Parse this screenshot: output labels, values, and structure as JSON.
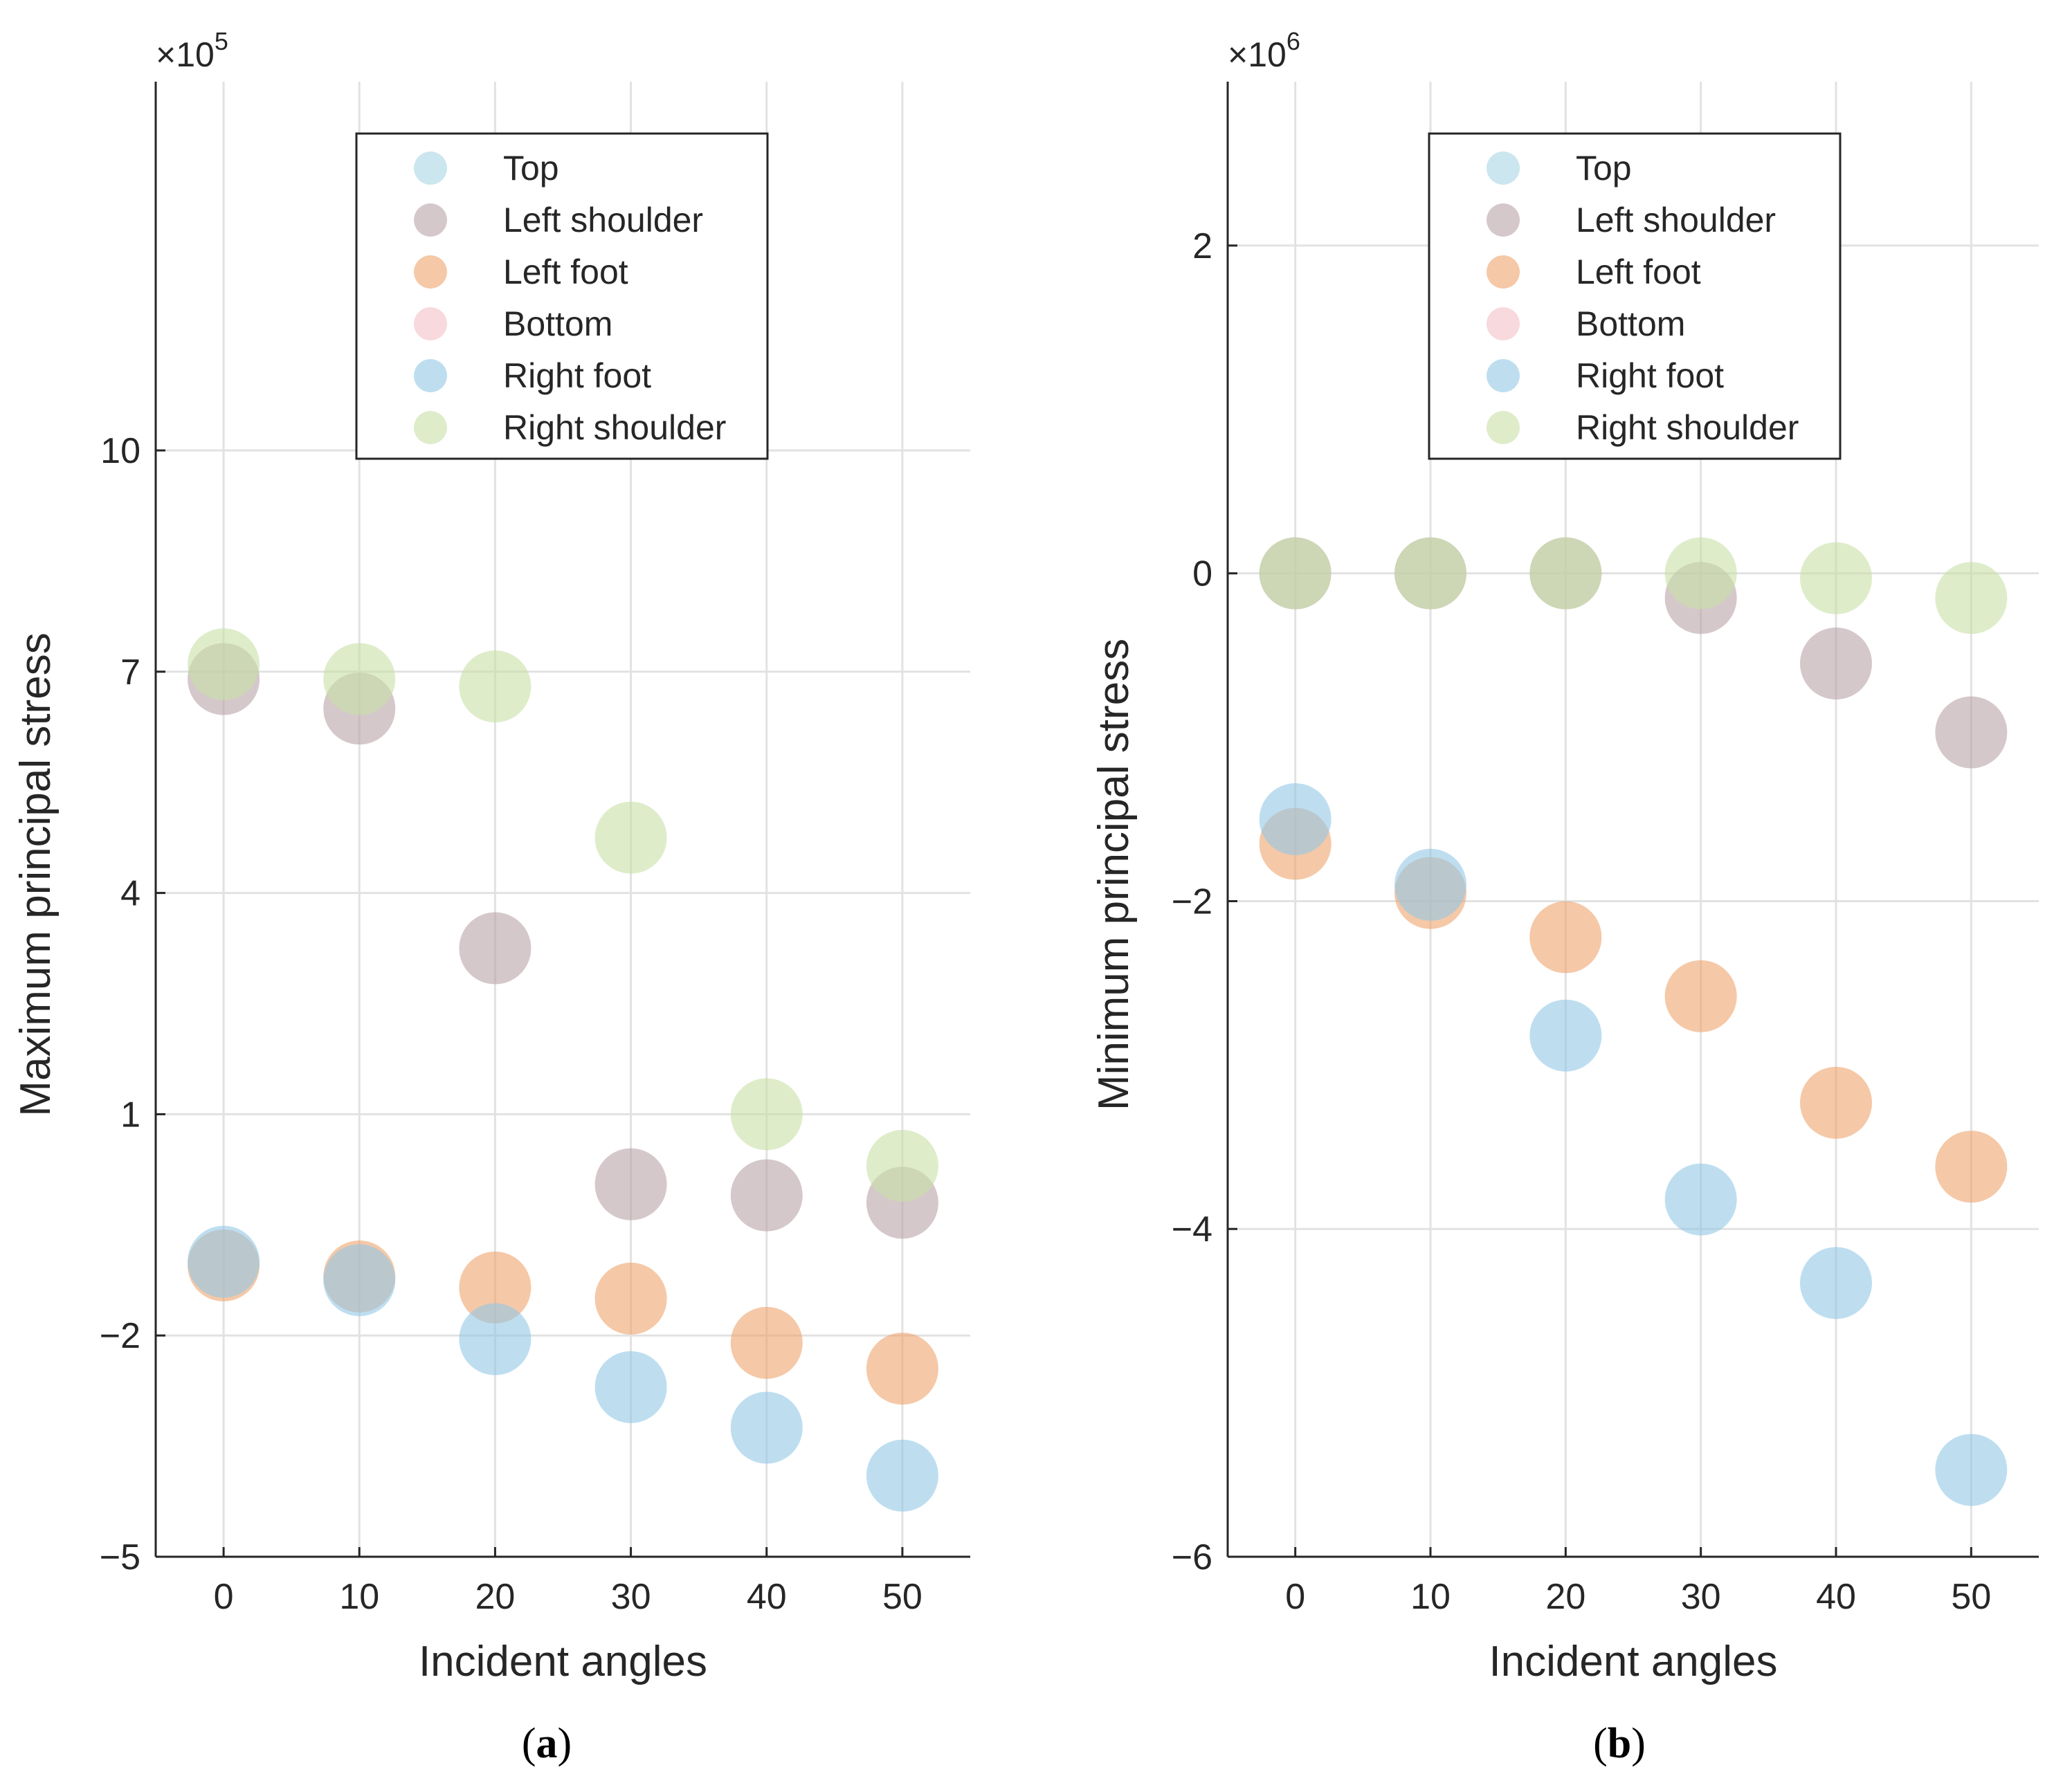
{
  "chart_data": [
    {
      "type": "scatter",
      "panel_label": "a",
      "xlabel": "Incident angles",
      "ylabel": "Maximum principal stress",
      "exponent_base": "×10",
      "exponent_power": "5",
      "xlim": [
        -5,
        55
      ],
      "ylim": [
        -5,
        15
      ],
      "xticks": [
        0,
        10,
        20,
        30,
        40,
        50
      ],
      "yticks": [
        -5,
        -2,
        1,
        4,
        7,
        10
      ],
      "grid": true,
      "legend_position": "top-center",
      "series": [
        {
          "name": "Top",
          "color": "#a8d6e2",
          "x": [],
          "y": []
        },
        {
          "name": "Left shoulder",
          "color": "#b9a4a8",
          "x": [
            0,
            10,
            20,
            30,
            40,
            50
          ],
          "y": [
            6.9,
            6.5,
            3.25,
            0.05,
            -0.1,
            -0.2
          ]
        },
        {
          "name": "Left foot",
          "color": "#efa36c",
          "x": [
            0,
            10,
            20,
            30,
            40,
            50
          ],
          "y": [
            -1.05,
            -1.2,
            -1.35,
            -1.5,
            -2.1,
            -2.45
          ]
        },
        {
          "name": "Bottom",
          "color": "#f4c0c6",
          "x": [],
          "y": []
        },
        {
          "name": "Right foot",
          "color": "#93c8e6",
          "x": [
            0,
            10,
            20,
            30,
            40,
            50
          ],
          "y": [
            -1.0,
            -1.25,
            -2.05,
            -2.7,
            -3.25,
            -3.9
          ]
        },
        {
          "name": "Right shoulder",
          "color": "#c8e0a6",
          "x": [
            0,
            10,
            20,
            30,
            40,
            50
          ],
          "y": [
            7.1,
            6.9,
            6.8,
            4.75,
            1.0,
            0.3
          ]
        }
      ]
    },
    {
      "type": "scatter",
      "panel_label": "b",
      "xlabel": "Incident angles",
      "ylabel": "Minimum principal stress",
      "exponent_base": "×10",
      "exponent_power": "6",
      "xlim": [
        -5,
        55
      ],
      "ylim": [
        -6,
        3
      ],
      "xticks": [
        0,
        10,
        20,
        30,
        40,
        50
      ],
      "yticks": [
        -6,
        -4,
        -2,
        0,
        2
      ],
      "grid": true,
      "legend_position": "top-center",
      "series": [
        {
          "name": "Top",
          "color": "#a8d6e2",
          "x": [],
          "y": []
        },
        {
          "name": "Left shoulder",
          "color": "#b9a4a8",
          "x": [
            0,
            10,
            20,
            30,
            40,
            50
          ],
          "y": [
            0.0,
            0.0,
            0.0,
            -0.15,
            -0.55,
            -0.97
          ]
        },
        {
          "name": "Left foot",
          "color": "#efa36c",
          "x": [
            0,
            10,
            20,
            30,
            40,
            50
          ],
          "y": [
            -1.65,
            -1.95,
            -2.22,
            -2.58,
            -3.23,
            -3.62
          ]
        },
        {
          "name": "Bottom",
          "color": "#f4c0c6",
          "x": [],
          "y": []
        },
        {
          "name": "Right foot",
          "color": "#93c8e6",
          "x": [
            0,
            10,
            20,
            30,
            40,
            50
          ],
          "y": [
            -1.5,
            -1.9,
            -2.82,
            -3.82,
            -4.33,
            -5.47
          ]
        },
        {
          "name": "Right shoulder",
          "color": "#c8e0a6",
          "x": [
            0,
            10,
            20,
            30,
            40,
            50
          ],
          "y": [
            0.0,
            0.0,
            0.0,
            0.0,
            -0.03,
            -0.15
          ]
        }
      ]
    }
  ]
}
